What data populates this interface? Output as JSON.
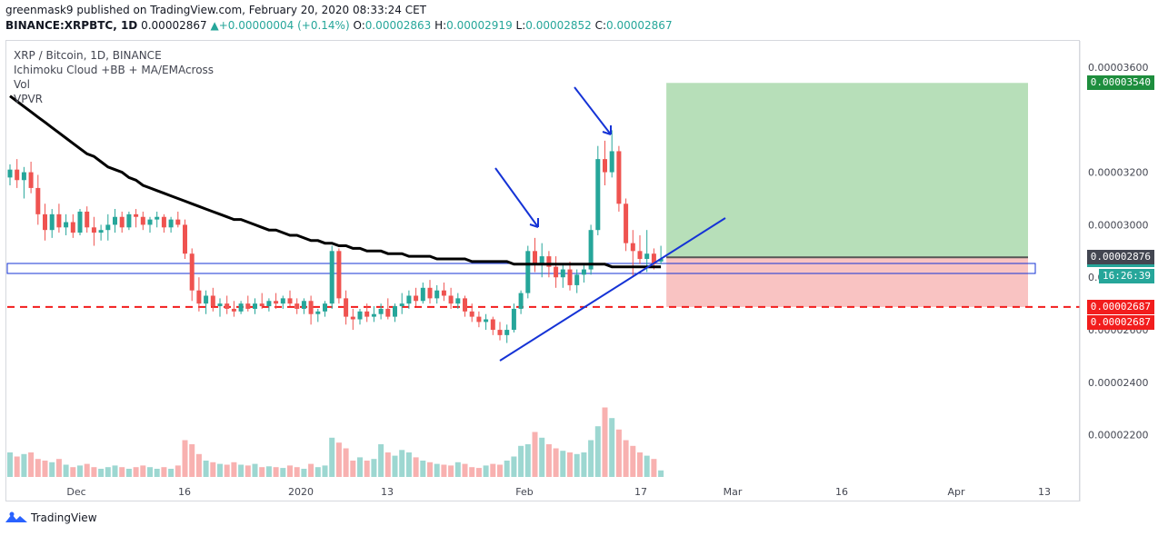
{
  "header": {
    "line1": "greenmask9 published on TradingView.com, February 20, 2020 08:33:24 CET",
    "symbol": "BINANCE:XRPBTC, 1D",
    "last": "0.00002867",
    "change_icon": "arrow-up-icon",
    "change": "+0.00000004 (+0.14%)",
    "o_label": "O:",
    "o": "0.00002863",
    "h_label": "H:",
    "h": "0.00002919",
    "l_label": "L:",
    "l": "0.00002852",
    "c_label": "C:",
    "c": "0.00002867"
  },
  "legend": {
    "title": "XRP / Bitcoin, 1D, BINANCE",
    "ind1": "Ichimoku Cloud +BB + MA/EMAcross",
    "ind2": "Vol",
    "ind3": "VPVR"
  },
  "footer": {
    "brand": "TradingView",
    "logo_icon": "tradingview-logo-icon"
  },
  "colors": {
    "up": "#26a69a",
    "down": "#ef5350",
    "ma200": "#000000",
    "cloud_bull": "#a5d6a7",
    "cloud_bear": "#ffcdd2",
    "bb": "#80deea",
    "ichimoku_base": "#7aa3d6",
    "rsi": "#f39c12",
    "trend": "#1533d6",
    "target": "#4caf50"
  },
  "chart_data": {
    "type": "candlestick",
    "symbol": "XRP / Bitcoin",
    "timeframe": "1D",
    "exchange": "BINANCE",
    "x_ticks": [
      "Dec",
      "16",
      "2020",
      "13",
      "Feb",
      "17",
      "Mar",
      "16",
      "Apr",
      "13"
    ],
    "y_ticks": [
      "0.00003600",
      "0.00003200",
      "0.00003000",
      "0.00002800",
      "0.00002600",
      "0.00002400",
      "0.00002200"
    ],
    "ylim": [
      2.04e-05,
      3.7e-05
    ],
    "price_labels": [
      {
        "value": 3.54e-05,
        "text": "0.00003540",
        "color": "#1e8e3e"
      },
      {
        "value": 2.867e-05,
        "text": "0.00002867",
        "color": "#26a69a"
      },
      {
        "value": 2.876e-05,
        "text": "0.00002876",
        "color": "#434651"
      },
      {
        "value": 2.687e-05,
        "text": "0.00002687",
        "color": "#f21d1d"
      },
      {
        "value": 2.687e-05,
        "text": "0.00002687",
        "color": "#f21d1d"
      }
    ],
    "countdown": "16:26:39",
    "candles": [
      [
        3.18e-05,
        3.23e-05,
        3.15e-05,
        3.21e-05
      ],
      [
        3.21e-05,
        3.25e-05,
        3.14e-05,
        3.17e-05
      ],
      [
        3.17e-05,
        3.22e-05,
        3.1e-05,
        3.2e-05
      ],
      [
        3.2e-05,
        3.24e-05,
        3.12e-05,
        3.14e-05
      ],
      [
        3.14e-05,
        3.19e-05,
        3e-05,
        3.04e-05
      ],
      [
        3.04e-05,
        3.08e-05,
        2.94e-05,
        2.98e-05
      ],
      [
        2.98e-05,
        3.06e-05,
        2.95e-05,
        3.04e-05
      ],
      [
        3.04e-05,
        3.08e-05,
        2.97e-05,
        2.99e-05
      ],
      [
        2.99e-05,
        3.04e-05,
        2.96e-05,
        3.01e-05
      ],
      [
        3.01e-05,
        3.04e-05,
        2.95e-05,
        2.97e-05
      ],
      [
        2.97e-05,
        3.06e-05,
        2.96e-05,
        3.05e-05
      ],
      [
        3.05e-05,
        3.07e-05,
        2.97e-05,
        2.99e-05
      ],
      [
        2.99e-05,
        3.03e-05,
        2.92e-05,
        2.97e-05
      ],
      [
        2.97e-05,
        3e-05,
        2.94e-05,
        2.98e-05
      ],
      [
        2.98e-05,
        3.04e-05,
        2.94e-05,
        3e-05
      ],
      [
        3e-05,
        3.06e-05,
        2.97e-05,
        3.03e-05
      ],
      [
        3.03e-05,
        3.05e-05,
        2.97e-05,
        2.99e-05
      ],
      [
        2.99e-05,
        3.05e-05,
        2.98e-05,
        3.04e-05
      ],
      [
        3.04e-05,
        3.06e-05,
        2.99e-05,
        3.03e-05
      ],
      [
        3.03e-05,
        3.05e-05,
        2.98e-05,
        3e-05
      ],
      [
        3e-05,
        3.03e-05,
        2.97e-05,
        3.02e-05
      ],
      [
        3.02e-05,
        3.05e-05,
        2.99e-05,
        3.03e-05
      ],
      [
        3.03e-05,
        3.04e-05,
        2.97e-05,
        2.99e-05
      ],
      [
        2.99e-05,
        3.03e-05,
        2.97e-05,
        3.02e-05
      ],
      [
        3.02e-05,
        3.05e-05,
        2.99e-05,
        3e-05
      ],
      [
        3e-05,
        3.02e-05,
        2.87e-05,
        2.89e-05
      ],
      [
        2.89e-05,
        2.91e-05,
        2.71e-05,
        2.75e-05
      ],
      [
        2.75e-05,
        2.8e-05,
        2.67e-05,
        2.7e-05
      ],
      [
        2.7e-05,
        2.75e-05,
        2.66e-05,
        2.73e-05
      ],
      [
        2.73e-05,
        2.76e-05,
        2.67e-05,
        2.69e-05
      ],
      [
        2.69e-05,
        2.72e-05,
        2.65e-05,
        2.7e-05
      ],
      [
        2.7e-05,
        2.73e-05,
        2.66e-05,
        2.68e-05
      ],
      [
        2.68e-05,
        2.71e-05,
        2.65e-05,
        2.67e-05
      ],
      [
        2.67e-05,
        2.71e-05,
        2.66e-05,
        2.7e-05
      ],
      [
        2.7e-05,
        2.73e-05,
        2.67e-05,
        2.68e-05
      ],
      [
        2.68e-05,
        2.72e-05,
        2.66e-05,
        2.7e-05
      ],
      [
        2.7e-05,
        2.74e-05,
        2.68e-05,
        2.69e-05
      ],
      [
        2.69e-05,
        2.72e-05,
        2.67e-05,
        2.71e-05
      ],
      [
        2.71e-05,
        2.74e-05,
        2.68e-05,
        2.7e-05
      ],
      [
        2.7e-05,
        2.73e-05,
        2.68e-05,
        2.72e-05
      ],
      [
        2.72e-05,
        2.75e-05,
        2.69e-05,
        2.7e-05
      ],
      [
        2.7e-05,
        2.72e-05,
        2.66e-05,
        2.68e-05
      ],
      [
        2.68e-05,
        2.72e-05,
        2.66e-05,
        2.71e-05
      ],
      [
        2.71e-05,
        2.73e-05,
        2.62e-05,
        2.66e-05
      ],
      [
        2.66e-05,
        2.68e-05,
        2.63e-05,
        2.67e-05
      ],
      [
        2.67e-05,
        2.71e-05,
        2.65e-05,
        2.7e-05
      ],
      [
        2.7e-05,
        2.92e-05,
        2.68e-05,
        2.9e-05
      ],
      [
        2.9e-05,
        2.91e-05,
        2.7e-05,
        2.72e-05
      ],
      [
        2.72e-05,
        2.75e-05,
        2.62e-05,
        2.65e-05
      ],
      [
        2.65e-05,
        2.68e-05,
        2.6e-05,
        2.64e-05
      ],
      [
        2.64e-05,
        2.68e-05,
        2.62e-05,
        2.67e-05
      ],
      [
        2.67e-05,
        2.7e-05,
        2.63e-05,
        2.65e-05
      ],
      [
        2.65e-05,
        2.69e-05,
        2.63e-05,
        2.66e-05
      ],
      [
        2.66e-05,
        2.7e-05,
        2.64e-05,
        2.68e-05
      ],
      [
        2.68e-05,
        2.72e-05,
        2.64e-05,
        2.65e-05
      ],
      [
        2.65e-05,
        2.7e-05,
        2.63e-05,
        2.69e-05
      ],
      [
        2.69e-05,
        2.74e-05,
        2.66e-05,
        2.7e-05
      ],
      [
        2.7e-05,
        2.75e-05,
        2.68e-05,
        2.73e-05
      ],
      [
        2.73e-05,
        2.76e-05,
        2.69e-05,
        2.71e-05
      ],
      [
        2.71e-05,
        2.78e-05,
        2.7e-05,
        2.76e-05
      ],
      [
        2.76e-05,
        2.79e-05,
        2.7e-05,
        2.72e-05
      ],
      [
        2.72e-05,
        2.77e-05,
        2.7e-05,
        2.75e-05
      ],
      [
        2.75e-05,
        2.78e-05,
        2.71e-05,
        2.73e-05
      ],
      [
        2.73e-05,
        2.76e-05,
        2.68e-05,
        2.7e-05
      ],
      [
        2.7e-05,
        2.74e-05,
        2.68e-05,
        2.72e-05
      ],
      [
        2.72e-05,
        2.73e-05,
        2.65e-05,
        2.67e-05
      ],
      [
        2.67e-05,
        2.7e-05,
        2.63e-05,
        2.65e-05
      ],
      [
        2.65e-05,
        2.67e-05,
        2.61e-05,
        2.63e-05
      ],
      [
        2.63e-05,
        2.66e-05,
        2.6e-05,
        2.64e-05
      ],
      [
        2.64e-05,
        2.65e-05,
        2.58e-05,
        2.6e-05
      ],
      [
        2.6e-05,
        2.63e-05,
        2.56e-05,
        2.58e-05
      ],
      [
        2.58e-05,
        2.62e-05,
        2.55e-05,
        2.6e-05
      ],
      [
        2.6e-05,
        2.7e-05,
        2.59e-05,
        2.68e-05
      ],
      [
        2.68e-05,
        2.75e-05,
        2.66e-05,
        2.74e-05
      ],
      [
        2.74e-05,
        2.92e-05,
        2.72e-05,
        2.9e-05
      ],
      [
        2.9e-05,
        2.95e-05,
        2.82e-05,
        2.85e-05
      ],
      [
        2.85e-05,
        2.93e-05,
        2.8e-05,
        2.88e-05
      ],
      [
        2.88e-05,
        2.9e-05,
        2.8e-05,
        2.84e-05
      ],
      [
        2.84e-05,
        2.88e-05,
        2.76e-05,
        2.8e-05
      ],
      [
        2.8e-05,
        2.85e-05,
        2.76e-05,
        2.83e-05
      ],
      [
        2.83e-05,
        2.86e-05,
        2.75e-05,
        2.77e-05
      ],
      [
        2.77e-05,
        2.83e-05,
        2.74e-05,
        2.81e-05
      ],
      [
        2.81e-05,
        2.85e-05,
        2.78e-05,
        2.83e-05
      ],
      [
        2.83e-05,
        3e-05,
        2.81e-05,
        2.98e-05
      ],
      [
        2.98e-05,
        3.3e-05,
        2.96e-05,
        3.25e-05
      ],
      [
        3.25e-05,
        3.32e-05,
        3.15e-05,
        3.2e-05
      ],
      [
        3.2e-05,
        3.36e-05,
        3.18e-05,
        3.28e-05
      ],
      [
        3.28e-05,
        3.3e-05,
        3.05e-05,
        3.08e-05
      ],
      [
        3.08e-05,
        3.1e-05,
        2.9e-05,
        2.93e-05
      ],
      [
        2.93e-05,
        2.98e-05,
        2.8e-05,
        2.9e-05
      ],
      [
        2.9e-05,
        2.96e-05,
        2.85e-05,
        2.87e-05
      ],
      [
        2.87e-05,
        2.98e-05,
        2.82e-05,
        2.89e-05
      ],
      [
        2.89e-05,
        2.91e-05,
        2.83e-05,
        2.85e-05
      ],
      [
        2.86e-05,
        2.92e-05,
        2.85e-05,
        2.87e-05
      ]
    ],
    "volumes": [
      0.3,
      0.25,
      0.28,
      0.3,
      0.22,
      0.2,
      0.18,
      0.22,
      0.15,
      0.12,
      0.14,
      0.16,
      0.12,
      0.1,
      0.12,
      0.14,
      0.12,
      0.1,
      0.12,
      0.14,
      0.12,
      0.1,
      0.12,
      0.1,
      0.14,
      0.45,
      0.4,
      0.28,
      0.2,
      0.18,
      0.16,
      0.15,
      0.18,
      0.15,
      0.14,
      0.16,
      0.12,
      0.13,
      0.12,
      0.11,
      0.14,
      0.12,
      0.1,
      0.16,
      0.12,
      0.14,
      0.48,
      0.42,
      0.35,
      0.2,
      0.24,
      0.2,
      0.22,
      0.4,
      0.3,
      0.26,
      0.33,
      0.3,
      0.24,
      0.2,
      0.18,
      0.16,
      0.15,
      0.14,
      0.18,
      0.16,
      0.12,
      0.11,
      0.14,
      0.16,
      0.15,
      0.2,
      0.25,
      0.38,
      0.4,
      0.55,
      0.48,
      0.4,
      0.35,
      0.32,
      0.3,
      0.28,
      0.3,
      0.45,
      0.62,
      0.85,
      0.72,
      0.58,
      0.45,
      0.38,
      0.3,
      0.26,
      0.22,
      0.08
    ],
    "ma200": [
      3.49e-05,
      3.47e-05,
      3.45e-05,
      3.43e-05,
      3.41e-05,
      3.39e-05,
      3.37e-05,
      3.35e-05,
      3.33e-05,
      3.31e-05,
      3.29e-05,
      3.27e-05,
      3.26e-05,
      3.24e-05,
      3.22e-05,
      3.21e-05,
      3.2e-05,
      3.18e-05,
      3.17e-05,
      3.15e-05,
      3.14e-05,
      3.13e-05,
      3.12e-05,
      3.11e-05,
      3.1e-05,
      3.09e-05,
      3.08e-05,
      3.07e-05,
      3.06e-05,
      3.05e-05,
      3.04e-05,
      3.03e-05,
      3.02e-05,
      3.02e-05,
      3.01e-05,
      3e-05,
      2.99e-05,
      2.98e-05,
      2.98e-05,
      2.97e-05,
      2.96e-05,
      2.96e-05,
      2.95e-05,
      2.94e-05,
      2.94e-05,
      2.93e-05,
      2.93e-05,
      2.92e-05,
      2.92e-05,
      2.91e-05,
      2.91e-05,
      2.9e-05,
      2.9e-05,
      2.9e-05,
      2.89e-05,
      2.89e-05,
      2.89e-05,
      2.88e-05,
      2.88e-05,
      2.88e-05,
      2.88e-05,
      2.87e-05,
      2.87e-05,
      2.87e-05,
      2.87e-05,
      2.87e-05,
      2.86e-05,
      2.86e-05,
      2.86e-05,
      2.86e-05,
      2.86e-05,
      2.86e-05,
      2.85e-05,
      2.85e-05,
      2.85e-05,
      2.85e-05,
      2.85e-05,
      2.85e-05,
      2.85e-05,
      2.85e-05,
      2.85e-05,
      2.85e-05,
      2.85e-05,
      2.85e-05,
      2.85e-05,
      2.85e-05,
      2.84e-05,
      2.84e-05,
      2.84e-05,
      2.84e-05,
      2.84e-05,
      2.84e-05,
      2.84e-05,
      2.84e-05
    ],
    "long_position": {
      "entry": 2.876e-05,
      "target": 3.54e-05,
      "stop": 2.687e-05
    },
    "horizontal_lines": [
      {
        "value": 2.687e-05,
        "style": "dashed",
        "color": "#f21d1d"
      }
    ]
  }
}
